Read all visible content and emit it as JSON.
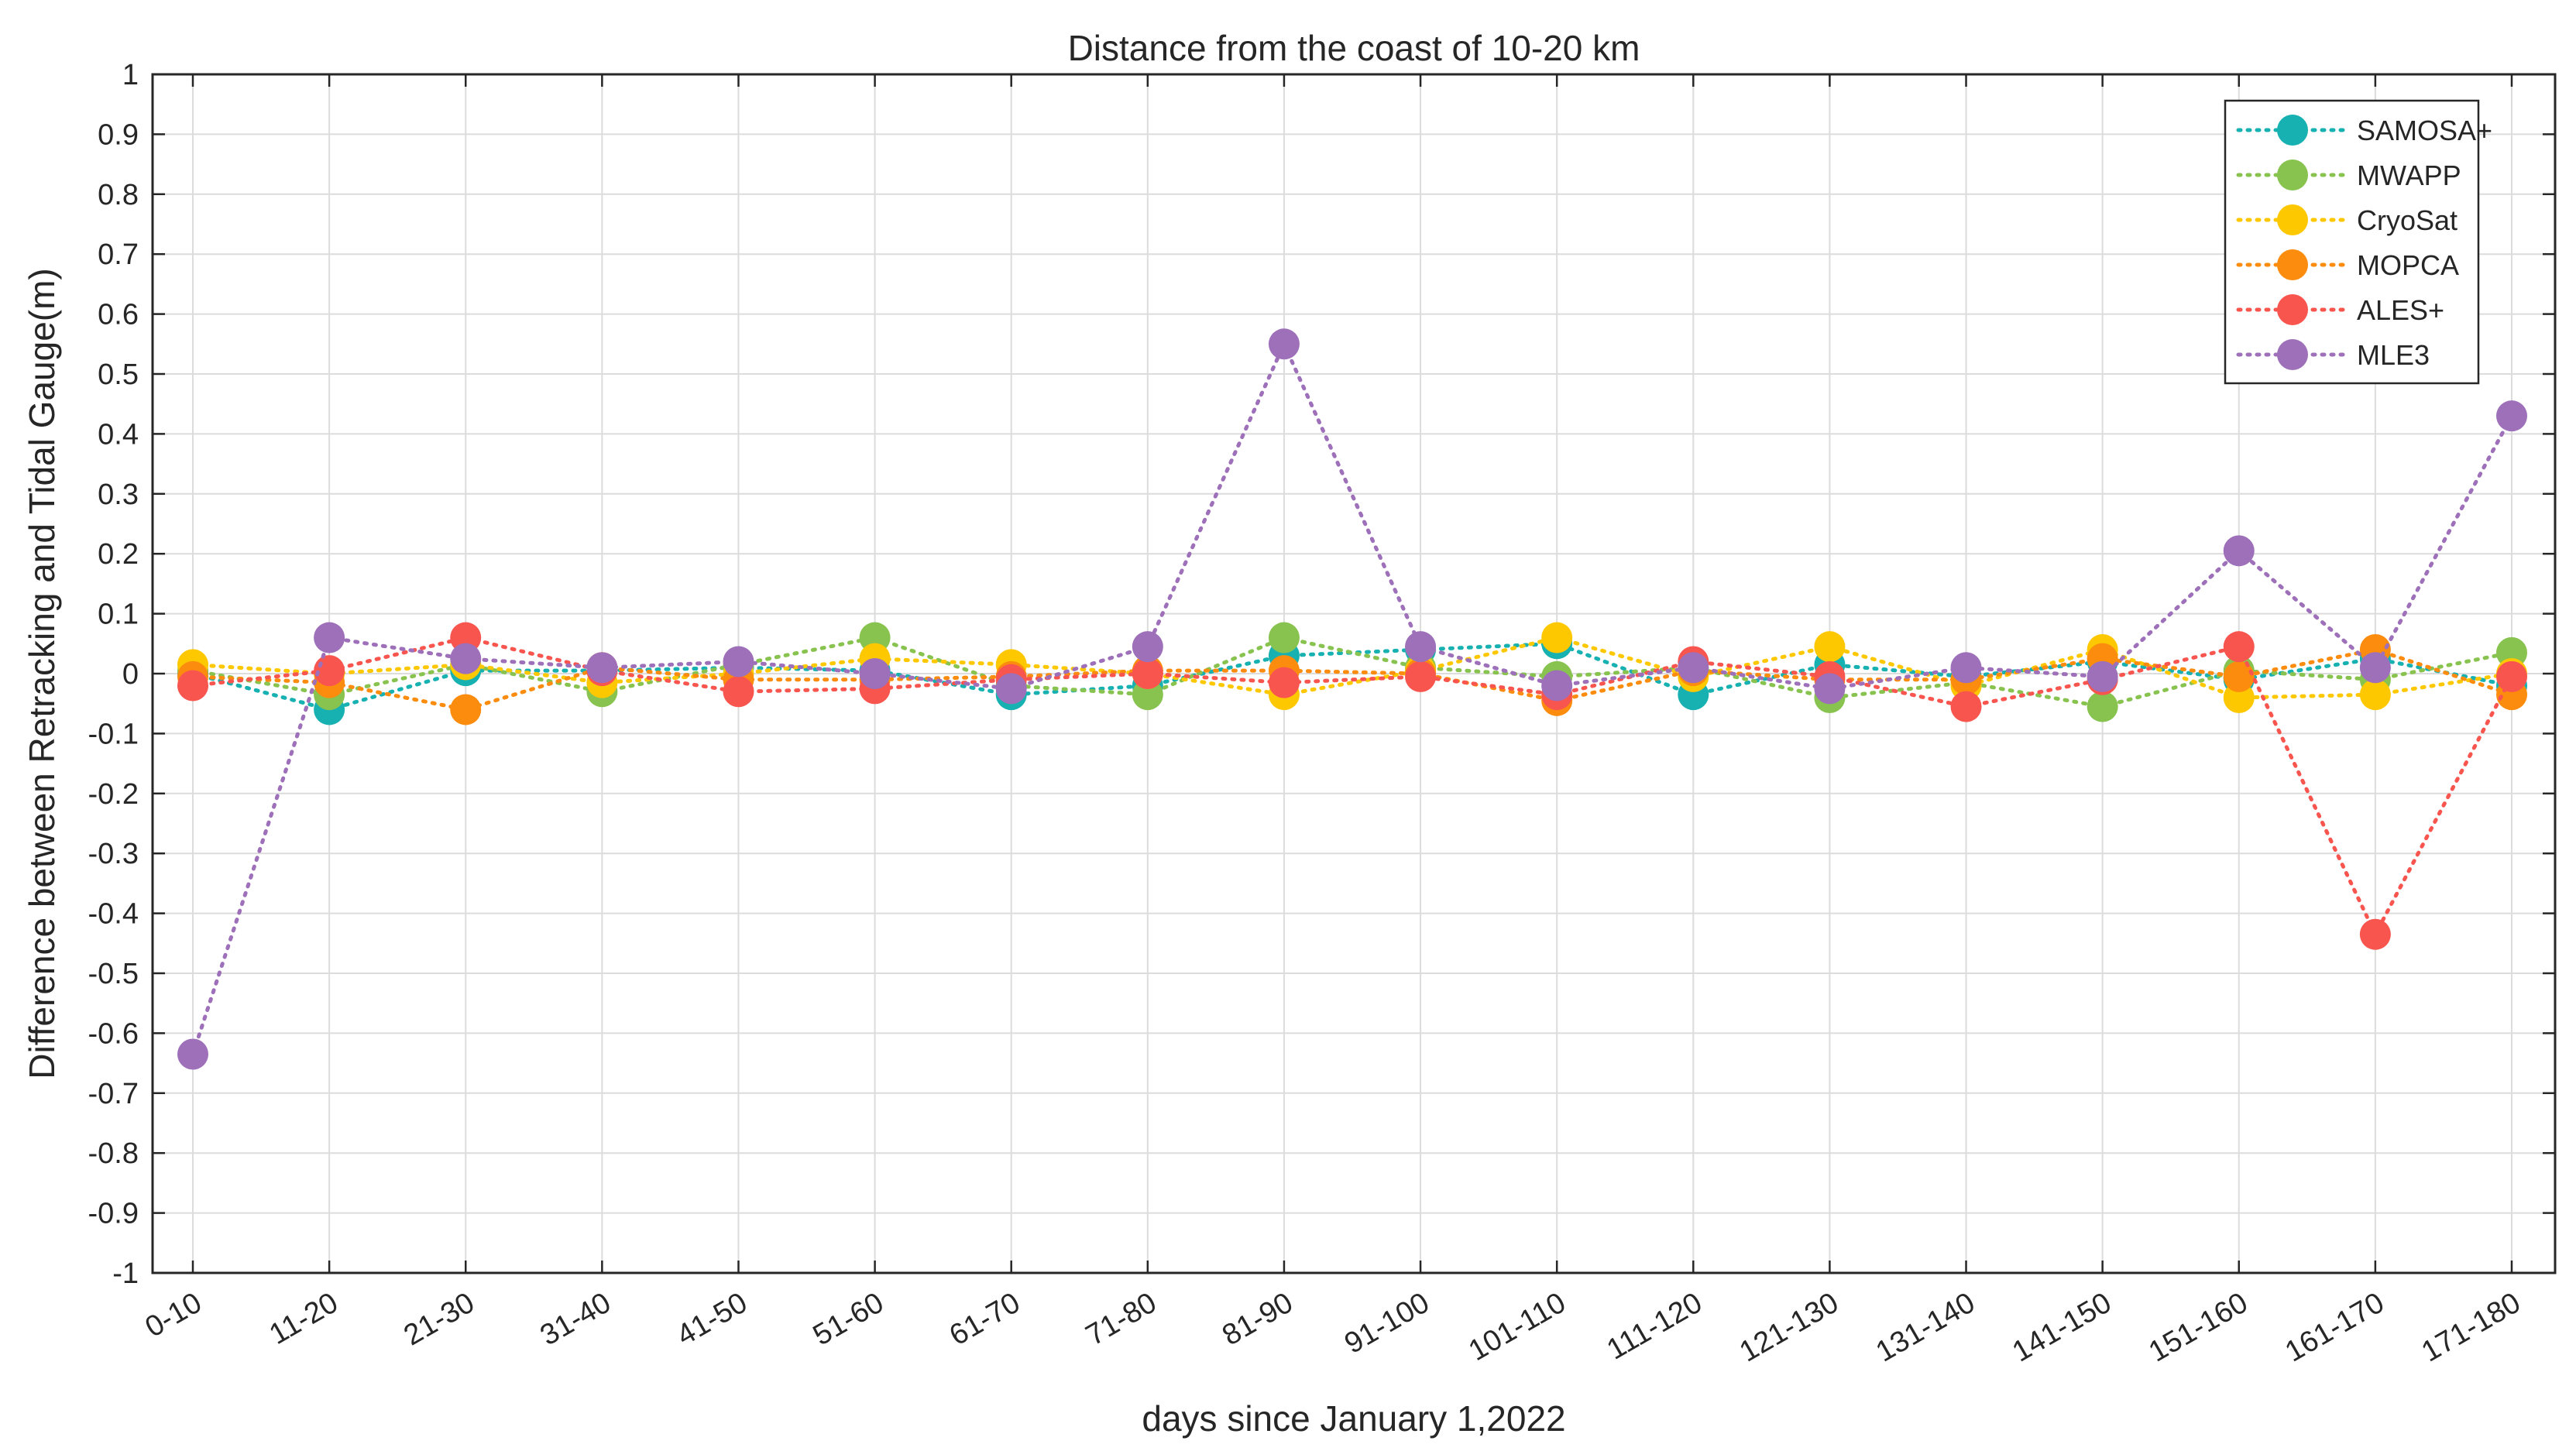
{
  "chart_data": {
    "type": "line",
    "title": "Distance from the coast of 10-20 km",
    "xlabel": "days  since January 1,2022",
    "ylabel": "Difference between Retracking and Tidal Gauge(m)",
    "ylim": [
      -1,
      1
    ],
    "grid": true,
    "legend_position": "top-right",
    "categories": [
      "0-10",
      "11-20",
      "21-30",
      "31-40",
      "41-50",
      "51-60",
      "61-70",
      "71-80",
      "81-90",
      "91-100",
      "101-110",
      "111-120",
      "121-130",
      "131-140",
      "141-150",
      "151-160",
      "161-170",
      "171-180"
    ],
    "y_ticks": [
      "1",
      "0.9",
      "0.8",
      "0.7",
      "0.6",
      "0.5",
      "0.4",
      "0.3",
      "0.2",
      "0.1",
      "0",
      "-0.1",
      "-0.2",
      "-0.3",
      "-0.4",
      "-0.5",
      "-0.6",
      "-0.7",
      "-0.8",
      "-0.9",
      "-1"
    ],
    "series": [
      {
        "name": "SAMOSA+",
        "color": "#17b1b1",
        "values": [
          0.0,
          -0.06,
          0.005,
          0.005,
          0.01,
          0.005,
          -0.035,
          -0.02,
          0.03,
          0.04,
          0.05,
          -0.035,
          0.015,
          -0.005,
          0.02,
          -0.01,
          0.025,
          -0.02
        ]
      },
      {
        "name": "MWAPP",
        "color": "#88c34f",
        "values": [
          0.005,
          -0.035,
          0.015,
          -0.03,
          0.015,
          0.06,
          -0.02,
          -0.035,
          0.06,
          0.01,
          -0.005,
          0.01,
          -0.04,
          -0.015,
          -0.055,
          0.005,
          -0.01,
          0.035
        ]
      },
      {
        "name": "CryoSat",
        "color": "#fdc800",
        "values": [
          0.015,
          0.0,
          0.015,
          -0.015,
          0.0,
          0.025,
          0.015,
          0.0,
          -0.035,
          0.005,
          0.06,
          -0.005,
          0.045,
          -0.02,
          0.04,
          -0.04,
          -0.035,
          0.0
        ]
      },
      {
        "name": "MOPCA",
        "color": "#fc8c0e",
        "values": [
          -0.005,
          -0.015,
          -0.06,
          0.01,
          -0.01,
          -0.01,
          -0.005,
          0.005,
          0.005,
          0.0,
          -0.045,
          0.005,
          -0.01,
          -0.01,
          0.025,
          -0.005,
          0.04,
          -0.035
        ]
      },
      {
        "name": "ALES+",
        "color": "#f9554f",
        "values": [
          -0.02,
          0.005,
          0.06,
          0.005,
          -0.03,
          -0.025,
          -0.01,
          0.0,
          -0.015,
          -0.005,
          -0.035,
          0.02,
          -0.005,
          -0.055,
          -0.01,
          0.045,
          -0.435,
          -0.005
        ]
      },
      {
        "name": "MLE3",
        "color": "#9d70b9",
        "values": [
          -0.635,
          0.06,
          0.025,
          0.01,
          0.02,
          0.0,
          -0.025,
          0.045,
          0.55,
          0.045,
          -0.02,
          0.01,
          -0.025,
          0.01,
          -0.005,
          0.205,
          0.01,
          0.43
        ]
      }
    ]
  }
}
